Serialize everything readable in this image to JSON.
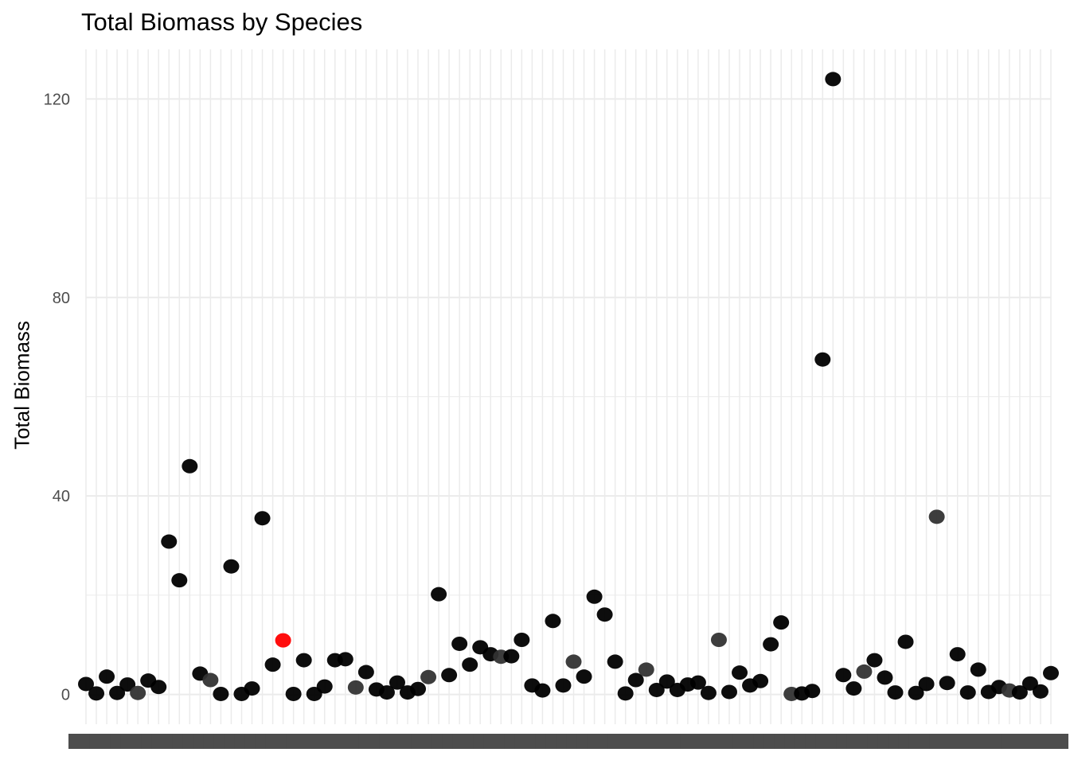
{
  "chart_data": {
    "type": "scatter",
    "title": "Total Biomass by Species",
    "xlabel": "",
    "ylabel": "Total Biomass",
    "ylim": [
      -6,
      130
    ],
    "yticks": [
      0,
      40,
      80,
      120
    ],
    "grid": true,
    "legend": "none",
    "colors": {
      "point": "#000000",
      "point_alt": "#333333",
      "highlight": "#ff0000",
      "grid": "#ebebeb",
      "tick_text": "#4d4d4d"
    },
    "x_tick_labels_legible": false,
    "n_categories": 94,
    "highlight_index": 19,
    "series": [
      {
        "values": [
          2.1,
          0.2,
          3.6,
          0.3,
          2.0,
          0.3,
          2.8,
          1.5,
          30.8,
          23.0,
          46.0,
          4.2,
          2.9,
          0.1,
          25.8,
          0.1,
          1.2,
          35.5,
          6.0,
          10.9,
          0.1,
          6.9,
          0.1,
          1.6,
          6.9,
          7.1,
          1.4,
          4.5,
          1.0,
          0.4,
          2.4,
          0.4,
          1.1,
          3.5,
          20.2,
          3.9,
          10.2,
          6.0,
          9.5,
          8.1,
          7.6,
          7.7,
          11.0,
          1.8,
          0.8,
          14.8,
          1.8,
          6.6,
          3.6,
          19.7,
          16.1,
          6.6,
          0.2,
          2.9,
          5.0,
          0.9,
          2.6,
          0.9,
          2.0,
          2.4,
          0.3,
          11.0,
          0.5,
          4.4,
          1.8,
          2.7,
          10.1,
          14.5,
          0.1,
          0.2,
          0.7,
          67.5,
          124.0,
          3.9,
          1.2,
          4.6,
          6.9,
          3.4,
          0.4,
          10.6,
          0.3,
          2.1,
          35.8,
          2.3,
          8.1,
          0.4,
          5.0,
          0.5,
          1.5,
          0.8,
          0.4,
          2.2,
          0.6,
          4.3
        ]
      }
    ]
  }
}
